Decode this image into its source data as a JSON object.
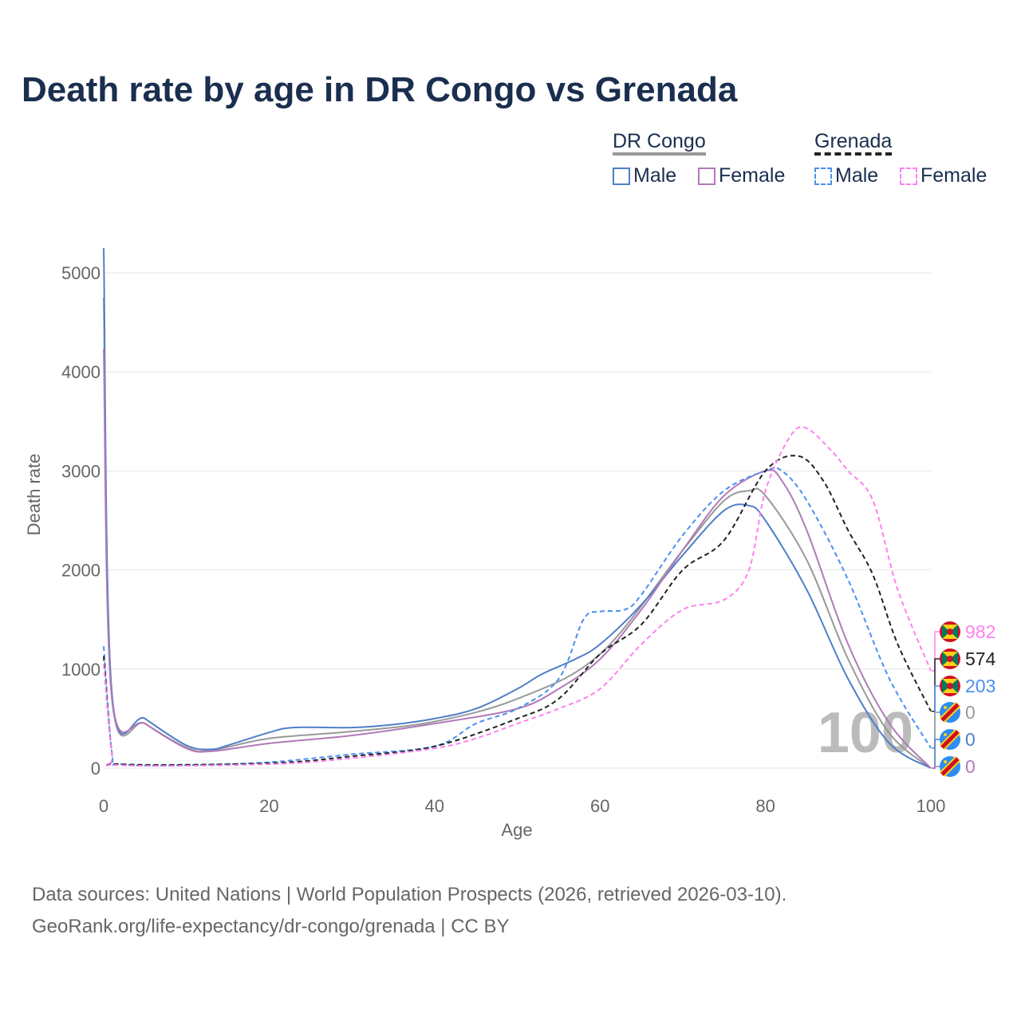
{
  "chart_data": {
    "type": "line",
    "title": "Death rate by age in DR Congo vs Grenada",
    "xlabel": "Age",
    "ylabel": "Death rate",
    "xlim": [
      0,
      100
    ],
    "ylim": [
      0,
      5000
    ],
    "xticks": [
      "0",
      "20",
      "40",
      "60",
      "80",
      "100"
    ],
    "yticks": [
      "0",
      "1000",
      "2000",
      "3000",
      "4000",
      "5000"
    ],
    "grid": true,
    "watermark": "100",
    "legend": {
      "groups": [
        {
          "name": "DR Congo",
          "items": [
            "Male",
            "Female"
          ]
        },
        {
          "name": "Grenada",
          "items": [
            "Male",
            "Female"
          ]
        }
      ],
      "placement": "top-right"
    },
    "series": [
      {
        "name": "DR Congo Total",
        "color": "#999999",
        "dash": false,
        "end_label": "0",
        "x": [
          0,
          1,
          5,
          10,
          13,
          20,
          30,
          40,
          50,
          60,
          70,
          75,
          78,
          80,
          85,
          90,
          95,
          100
        ],
        "y": [
          4750,
          700,
          450,
          210,
          180,
          300,
          370,
          470,
          700,
          1150,
          2200,
          2700,
          2800,
          2750,
          2100,
          1100,
          350,
          0
        ]
      },
      {
        "name": "DR Congo Male",
        "color": "#4f7fc8",
        "dash": false,
        "end_label": "0",
        "x": [
          0,
          1,
          5,
          10,
          13,
          15,
          20,
          23,
          30,
          35,
          40,
          45,
          50,
          53,
          57,
          60,
          65,
          70,
          75,
          78,
          80,
          85,
          90,
          95,
          100
        ],
        "y": [
          5250,
          750,
          500,
          230,
          190,
          230,
          360,
          410,
          410,
          440,
          500,
          600,
          800,
          950,
          1100,
          1250,
          1650,
          2150,
          2600,
          2650,
          2500,
          1800,
          900,
          250,
          0
        ]
      },
      {
        "name": "DR Congo Female",
        "color": "#b07ab8",
        "dash": false,
        "end_label": "0",
        "x": [
          0,
          1,
          5,
          10,
          13,
          20,
          30,
          40,
          50,
          55,
          60,
          65,
          70,
          75,
          80,
          82,
          85,
          90,
          95,
          100
        ],
        "y": [
          4230,
          700,
          450,
          200,
          170,
          250,
          330,
          450,
          600,
          800,
          1100,
          1600,
          2200,
          2750,
          3000,
          2900,
          2400,
          1250,
          450,
          0
        ]
      },
      {
        "name": "Grenada Male",
        "color": "#4a90f0",
        "dash": true,
        "end_label": "203",
        "x": [
          0,
          1,
          2,
          10,
          20,
          30,
          40,
          45,
          50,
          55,
          58,
          60,
          63,
          65,
          70,
          75,
          80,
          82,
          85,
          90,
          95,
          100
        ],
        "y": [
          1230,
          150,
          40,
          30,
          60,
          140,
          220,
          450,
          600,
          900,
          1500,
          1580,
          1600,
          1750,
          2350,
          2800,
          3000,
          3000,
          2700,
          1900,
          900,
          203
        ]
      },
      {
        "name": "Grenada Total",
        "color": "#222222",
        "dash": true,
        "end_label": "574",
        "x": [
          0,
          1,
          2,
          20,
          30,
          40,
          50,
          55,
          60,
          65,
          70,
          75,
          80,
          84,
          87,
          90,
          93,
          96,
          100
        ],
        "y": [
          1130,
          140,
          40,
          50,
          120,
          220,
          500,
          700,
          1150,
          1450,
          2000,
          2300,
          3000,
          3150,
          2900,
          2400,
          1950,
          1250,
          574
        ]
      },
      {
        "name": "Grenada Female",
        "color": "#ff80f0",
        "dash": true,
        "end_label": "982",
        "x": [
          0,
          1,
          2,
          20,
          30,
          40,
          45,
          50,
          55,
          60,
          65,
          70,
          75,
          78,
          80,
          83,
          85,
          88,
          90,
          93,
          96,
          100
        ],
        "y": [
          1050,
          140,
          30,
          40,
          100,
          200,
          300,
          450,
          600,
          800,
          1250,
          1600,
          1700,
          2000,
          2800,
          3350,
          3430,
          3200,
          3000,
          2700,
          1800,
          982
        ]
      }
    ]
  },
  "source_line1": "Data sources: United Nations | World Population Prospects (2026, retrieved 2026-03-10).",
  "source_line2": "GeoRank.org/life-expectancy/dr-congo/grenada | CC BY"
}
